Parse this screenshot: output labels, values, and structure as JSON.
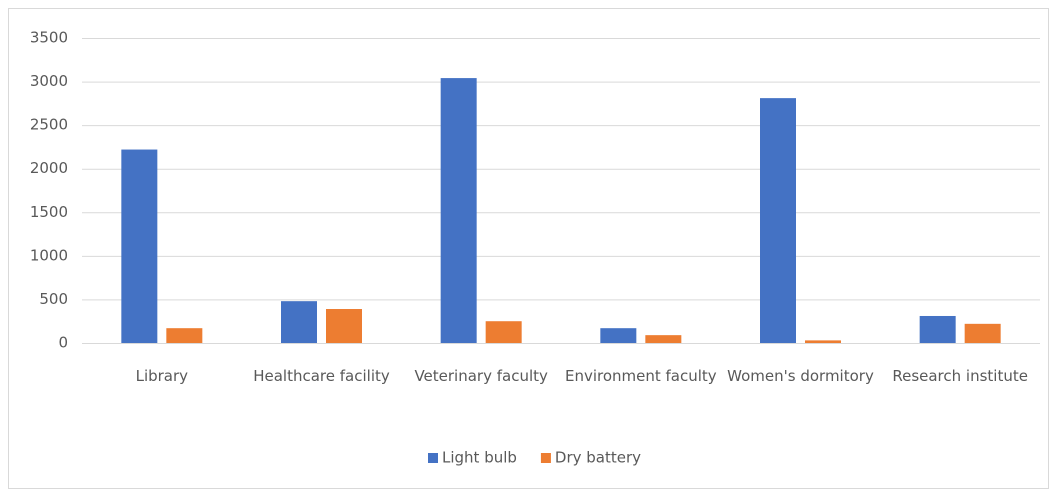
{
  "chart_data": {
    "type": "bar",
    "categories": [
      "Library",
      "Healthcare facility",
      "Veterinary faculty",
      "Environment faculty",
      "Women's dormitory",
      "Research institute"
    ],
    "series": [
      {
        "name": "Light bulb",
        "color": "#4472c4",
        "values": [
          2220,
          480,
          3040,
          170,
          2810,
          310
        ]
      },
      {
        "name": "Dry battery",
        "color": "#ed7d31",
        "values": [
          170,
          390,
          250,
          90,
          30,
          220
        ]
      }
    ],
    "ylim": [
      0,
      3500
    ],
    "yticks": [
      0,
      500,
      1000,
      1500,
      2000,
      2500,
      3000,
      3500
    ],
    "grid": true,
    "legend": "bottom"
  }
}
